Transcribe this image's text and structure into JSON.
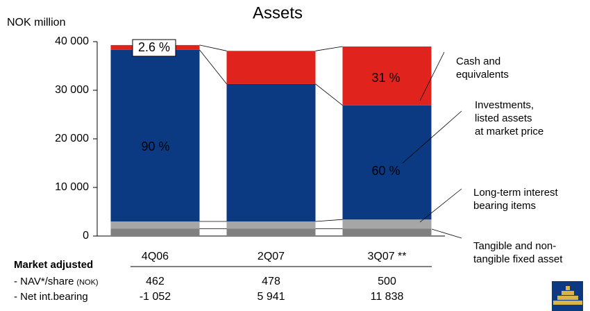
{
  "chart_data": {
    "type": "stacked_bar",
    "title": "Assets",
    "y_label": "NOK million",
    "categories": [
      "4Q06",
      "2Q07",
      "3Q07 **"
    ],
    "series": [
      {
        "name": "Tangible and non-\ntangible fixed asset",
        "color": "#808080",
        "values": [
          1500,
          1500,
          1500
        ]
      },
      {
        "name": "Long-term interest\nbearing items",
        "color": "#a6a6a6",
        "values": [
          1500,
          1500,
          1900
        ]
      },
      {
        "name": "Investments,\nlisted assets\nat market price",
        "color": "#0b3a82",
        "values": [
          35300,
          28300,
          23500
        ]
      },
      {
        "name": "Cash and\nequivalents",
        "color": "#e0231c",
        "values": [
          1000,
          6800,
          12100
        ]
      }
    ],
    "annotations": [
      "2.6 %",
      "90 %",
      "31 %",
      "60 %"
    ],
    "ylim": [
      0,
      40000
    ],
    "yticks": [
      {
        "value": 0,
        "label": "0"
      },
      {
        "value": 10000,
        "label": "10 000"
      },
      {
        "value": 20000,
        "label": "20 000"
      },
      {
        "value": 30000,
        "label": "30 000"
      },
      {
        "value": 40000,
        "label": "40 000"
      }
    ],
    "table": {
      "title": "Market adjusted",
      "rows": [
        {
          "label": "- NAV*/share",
          "unit": "(NOK)",
          "values": [
            "462",
            "478",
            "500"
          ]
        },
        {
          "label": "- Net int.bearing",
          "values": [
            "-1 052",
            "5 941",
            "11 838"
          ]
        }
      ]
    }
  }
}
